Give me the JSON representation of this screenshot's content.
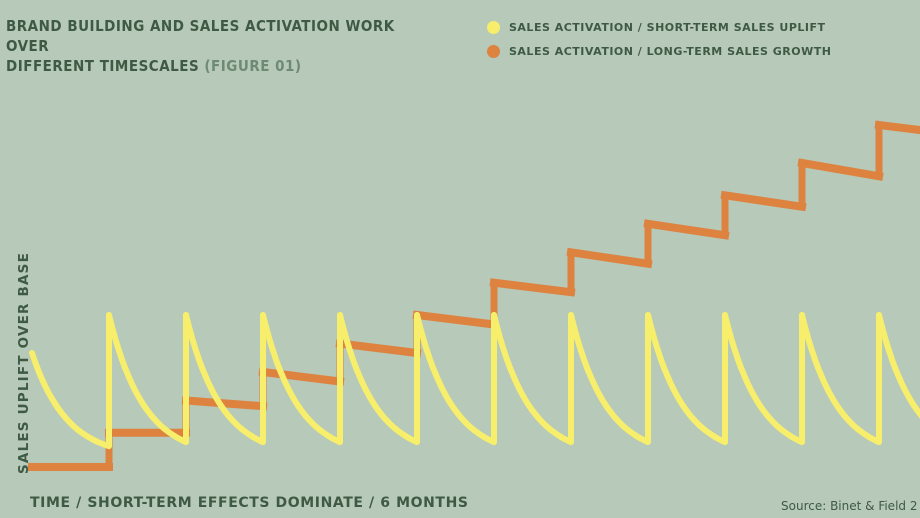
{
  "chart_data": {
    "type": "line",
    "title_line1": "BRAND BUILDING AND SALES ACTIVATION WORK OVER",
    "title_line2": "DIFFERENT TIMESCALES",
    "title_figure": "(FIGURE 01)",
    "ylabel": "SALES UPLIFT OVER BASE",
    "xlabel": "TIME / SHORT-TERM EFFECTS DOMINATE / 6 MONTHS",
    "source": "Source: Binet & Field 2",
    "legend_position": "top-right",
    "grid": false,
    "series": [
      {
        "name": "SALES ACTIVATION / SHORT-TERM SALES UPLIFT",
        "color": "#f7ee6c",
        "pulse_starts": [
          0,
          1,
          2,
          3,
          4,
          5,
          6,
          7,
          8,
          9,
          10,
          11
        ],
        "peak": 0.8,
        "trough": 0.05
      },
      {
        "name": "SALES ACTIVATION / LONG-TERM SALES GROWTH",
        "color": "#de8240",
        "step_levels": [
          [
            0,
            0.0,
            0.0
          ],
          [
            1,
            0.18,
            0.18
          ],
          [
            2,
            0.35,
            0.32
          ],
          [
            3,
            0.5,
            0.45
          ],
          [
            4,
            0.65,
            0.6
          ],
          [
            5,
            0.8,
            0.75
          ],
          [
            6,
            0.97,
            0.92
          ],
          [
            7,
            1.13,
            1.07
          ],
          [
            8,
            1.28,
            1.22
          ],
          [
            9,
            1.43,
            1.37
          ],
          [
            10,
            1.6,
            1.53
          ],
          [
            11,
            1.8,
            1.75
          ]
        ]
      }
    ]
  }
}
